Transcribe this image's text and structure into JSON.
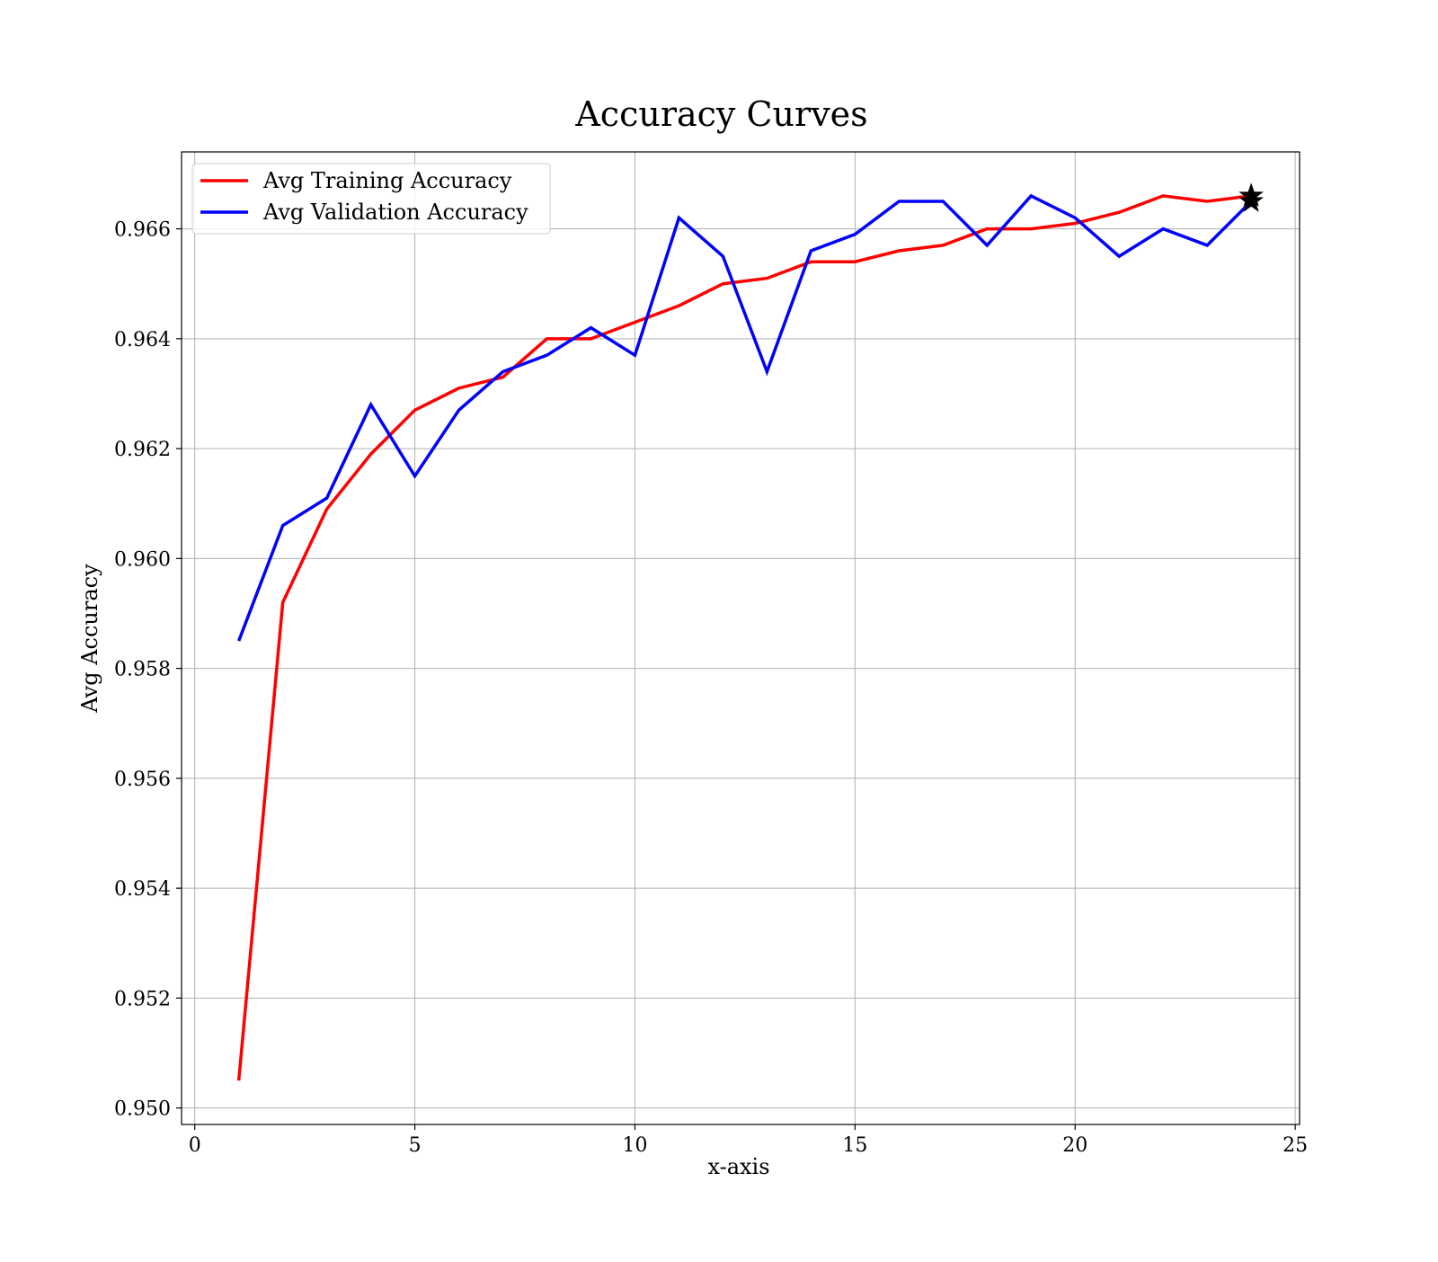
{
  "chart_data": {
    "type": "line",
    "title": "Accuracy Curves",
    "xlabel": "x-axis",
    "ylabel": "Avg Accuracy",
    "xlim": [
      -0.3,
      25.1
    ],
    "ylim": [
      0.9497,
      0.9674
    ],
    "xticks": [
      0,
      5,
      10,
      15,
      20,
      25
    ],
    "xtick_labels": [
      "0",
      "5",
      "10",
      "15",
      "20",
      "25"
    ],
    "yticks": [
      0.95,
      0.952,
      0.954,
      0.956,
      0.958,
      0.96,
      0.962,
      0.964,
      0.966
    ],
    "ytick_labels": [
      "0.950",
      "0.952",
      "0.954",
      "0.956",
      "0.958",
      "0.960",
      "0.962",
      "0.964",
      "0.966"
    ],
    "grid": true,
    "legend_position": "top-left",
    "x": [
      1,
      2,
      3,
      4,
      5,
      6,
      7,
      8,
      9,
      10,
      11,
      12,
      13,
      14,
      15,
      16,
      17,
      18,
      19,
      20,
      21,
      22,
      23,
      24
    ],
    "series": [
      {
        "name": "Avg Training Accuracy",
        "color": "#ff0000",
        "values": [
          0.9505,
          0.9592,
          0.9609,
          0.9619,
          0.9627,
          0.9631,
          0.9633,
          0.964,
          0.964,
          0.9643,
          0.9646,
          0.965,
          0.9651,
          0.9654,
          0.9654,
          0.9656,
          0.9657,
          0.966,
          0.966,
          0.9661,
          0.9663,
          0.9666,
          0.9665,
          0.9666
        ],
        "marker_last": "star"
      },
      {
        "name": "Avg Validation Accuracy",
        "color": "#0000ff",
        "values": [
          0.9585,
          0.9606,
          0.9611,
          0.9628,
          0.9615,
          0.9627,
          0.9634,
          0.9637,
          0.9642,
          0.9637,
          0.9662,
          0.9655,
          0.9634,
          0.9656,
          0.9659,
          0.9665,
          0.9665,
          0.9657,
          0.9666,
          0.9662,
          0.9655,
          0.966,
          0.9657,
          0.9665
        ],
        "marker_last": "star"
      }
    ],
    "marker_color": "#000000"
  }
}
